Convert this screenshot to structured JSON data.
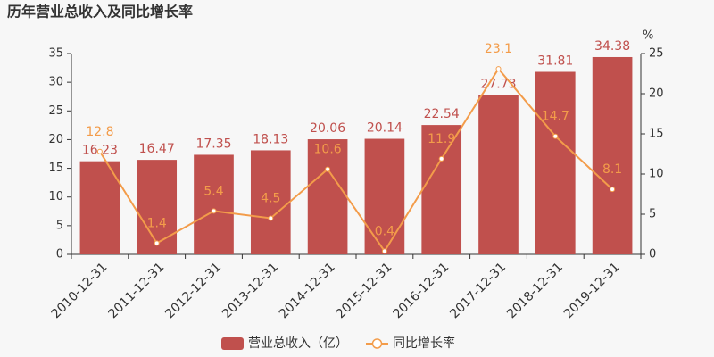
{
  "chart_data": {
    "type": "bar",
    "title": "历年营业总收入及同比增长率",
    "categories": [
      "2010-12-31",
      "2011-12-31",
      "2012-12-31",
      "2013-12-31",
      "2014-12-31",
      "2015-12-31",
      "2016-12-31",
      "2017-12-31",
      "2018-12-31",
      "2019-12-31"
    ],
    "series": [
      {
        "name": "营业总收入（亿）",
        "type": "bar",
        "color": "#c0504d",
        "values": [
          16.23,
          16.47,
          17.35,
          18.13,
          20.06,
          20.14,
          22.54,
          27.73,
          31.81,
          34.38
        ]
      },
      {
        "name": "同比增长率",
        "type": "line",
        "axis": "y2",
        "color": "#f39c4a",
        "values": [
          12.8,
          1.4,
          5.4,
          4.5,
          10.6,
          0.4,
          11.9,
          23.1,
          14.7,
          8.1
        ]
      }
    ],
    "ylim": [
      0,
      35
    ],
    "yticks": [
      0,
      5,
      10,
      15,
      20,
      25,
      30,
      35
    ],
    "y2label": "%",
    "y2lim": [
      0,
      25
    ],
    "y2ticks": [
      0,
      5,
      10,
      15,
      20,
      25
    ],
    "grid": false
  }
}
